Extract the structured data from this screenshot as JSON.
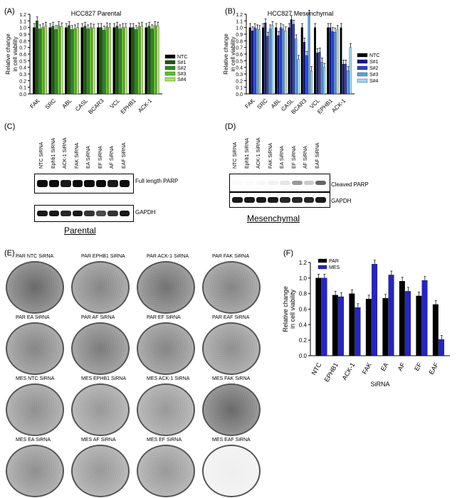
{
  "panels": {
    "A": {
      "label": "(A)"
    },
    "B": {
      "label": "(B)"
    },
    "C": {
      "label": "(C)"
    },
    "D": {
      "label": "(D)"
    },
    "E": {
      "label": "(E)"
    },
    "F": {
      "label": "(F)"
    }
  },
  "chart_data": [
    {
      "id": "A",
      "type": "bar",
      "title": "HCC827 Parental",
      "ylabel": "Relative change\nin cell viability",
      "ylim": [
        0,
        1.2
      ],
      "yticks": [
        "0.0",
        "0.1",
        "0.2",
        "0.3",
        "0.4",
        "0.5",
        "0.6",
        "0.7",
        "0.8",
        "0.9",
        "1.0",
        "1.1",
        "1.2"
      ],
      "categories": [
        "FAK",
        "SRC",
        "ABL",
        "CASL",
        "BCAR3",
        "VCL",
        "EPHB1",
        "ACK-1"
      ],
      "series": [
        {
          "name": "NTC",
          "color": "#000000",
          "values": [
            1.0,
            1.0,
            1.0,
            1.0,
            1.0,
            1.0,
            1.0,
            1.0
          ]
        },
        {
          "name": "S#1",
          "color": "#1a5c0a",
          "values": [
            1.1,
            1.02,
            1.03,
            1.02,
            1.0,
            1.02,
            1.0,
            1.02
          ]
        },
        {
          "name": "S#2",
          "color": "#2e8b1a",
          "values": [
            0.98,
            0.97,
            0.97,
            0.98,
            0.96,
            0.98,
            0.97,
            0.98
          ]
        },
        {
          "name": "S#3",
          "color": "#5cc22d",
          "values": [
            1.0,
            1.03,
            0.98,
            1.0,
            1.01,
            1.0,
            1.01,
            1.03
          ]
        },
        {
          "name": "S#4",
          "color": "#a6e85c",
          "values": [
            1.02,
            1.01,
            1.0,
            0.99,
            1.0,
            1.0,
            1.02,
            1.02
          ]
        }
      ],
      "legend": "right"
    },
    {
      "id": "B",
      "type": "bar",
      "title": "HCC827 Mesenchymal",
      "ylabel": "Relative change\nin cell viability",
      "ylim": [
        0,
        1.2
      ],
      "yticks": [
        "0.0",
        "0.1",
        "0.2",
        "0.3",
        "0.4",
        "0.5",
        "0.6",
        "0.7",
        "0.8",
        "0.9",
        "1.0",
        "1.1",
        "1.2"
      ],
      "categories": [
        "FAK",
        "SRC",
        "ABL",
        "CASL",
        "BCAR3",
        "VCL",
        "EPHB1",
        "ACK-1"
      ],
      "series": [
        {
          "name": "NTC",
          "color": "#000000",
          "values": [
            1.0,
            1.0,
            1.0,
            1.0,
            1.0,
            1.0,
            1.0,
            1.0
          ]
        },
        {
          "name": "S#1",
          "color": "#0a1a8c",
          "values": [
            0.95,
            1.07,
            0.88,
            1.12,
            0.78,
            0.62,
            1.0,
            0.45
          ]
        },
        {
          "name": "S#2",
          "color": "#3040d0",
          "values": [
            1.0,
            0.87,
            1.0,
            1.05,
            0.58,
            0.63,
            0.94,
            0.45
          ]
        },
        {
          "name": "S#3",
          "color": "#5aa0e8",
          "values": [
            0.98,
            0.98,
            0.98,
            0.83,
            1.2,
            0.48,
            0.93,
            0.35
          ]
        },
        {
          "name": "S#4",
          "color": "#9ad8f0",
          "values": [
            0.97,
            1.03,
            0.95,
            0.52,
            0.35,
            0.4,
            0.97,
            0.7
          ]
        }
      ],
      "legend": "right"
    },
    {
      "id": "F",
      "type": "bar",
      "xlabel": "SiRNA",
      "ylabel": "Relative change\nin cell viability",
      "ylim": [
        0,
        1.2
      ],
      "yticks": [
        "0.0",
        "0.2",
        "0.4",
        "0.6",
        "0.8",
        "1.0",
        "1.2"
      ],
      "categories": [
        "NTC",
        "EPHB1",
        "ACK-1",
        "FAK",
        "EA",
        "AF",
        "EF",
        "EAF"
      ],
      "series": [
        {
          "name": "PAR",
          "color": "#000000",
          "values": [
            1.0,
            0.78,
            0.8,
            0.73,
            0.74,
            0.96,
            0.77,
            0.66
          ]
        },
        {
          "name": "MES",
          "color": "#2424c8",
          "values": [
            1.0,
            0.76,
            0.62,
            1.18,
            1.04,
            0.83,
            0.97,
            0.21
          ]
        }
      ],
      "legend": "top-left"
    }
  ],
  "blots": {
    "C": {
      "lanes": [
        "NTC SiRNA",
        "Ephb1 SiRNA",
        "ACK-1 SiRNA",
        "FAK SiRNA",
        "EA SiRNA",
        "EF SiRNA",
        "AF SiRNA",
        "EAF SiRNA"
      ],
      "band1": "Full length PARP",
      "band2": "GAPDH",
      "caption": "Parental"
    },
    "D": {
      "lanes": [
        "NTC SiRNA",
        "Ephb1 SiRNA",
        "ACK-1 SiRNA",
        "FAK SiRNA",
        "EA SiRNA",
        "EF SiRNA",
        "AF SiRNA",
        "EAF SiRNA"
      ],
      "band1": "Cleaved PARP",
      "band2": "GAPDH",
      "caption": "Mesenchymal"
    }
  },
  "plates": [
    {
      "label": "PAR NTC SiRNA",
      "density": 0.75
    },
    {
      "label": "PAR EPHB1 SiRNA",
      "density": 0.6
    },
    {
      "label": "PAR ACK-1 SiRNA",
      "density": 0.7
    },
    {
      "label": "PAR FAK SiRNA",
      "density": 0.6
    },
    {
      "label": "PAR EA SiRNA",
      "density": 0.6
    },
    {
      "label": "PAR AF SiRNA",
      "density": 0.65
    },
    {
      "label": "PAR EF SiRNA",
      "density": 0.6
    },
    {
      "label": "PAR EAF SiRNA",
      "density": 0.55
    },
    {
      "label": "MES NTC SiRNA",
      "density": 0.55
    },
    {
      "label": "MES EPHB1 SiRNA",
      "density": 0.5
    },
    {
      "label": "MES ACK-1 SiRNA",
      "density": 0.5
    },
    {
      "label": "MES FAK SiRNA",
      "density": 0.75
    },
    {
      "label": "MES EA SiRNA",
      "density": 0.55
    },
    {
      "label": "MES AF SiRNA",
      "density": 0.5
    },
    {
      "label": "MES EF SiRNA",
      "density": 0.5
    },
    {
      "label": "MES EAF SiRNA",
      "density": 0.08
    }
  ]
}
